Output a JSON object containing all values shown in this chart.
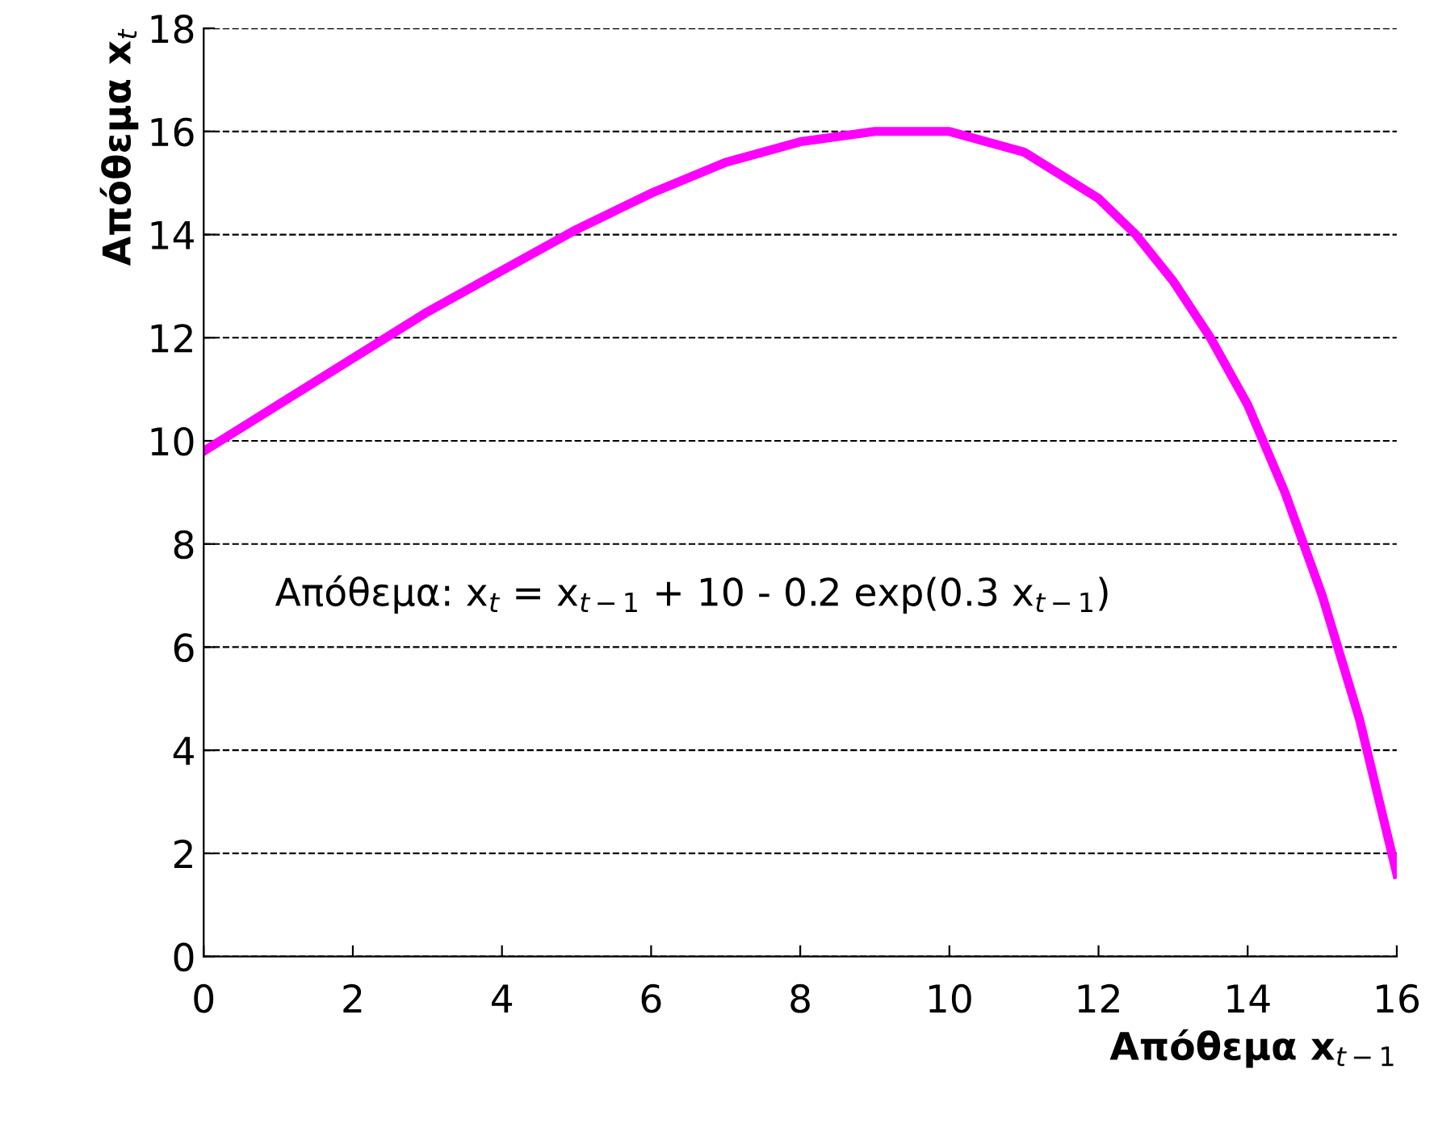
{
  "chart_data": {
    "type": "line",
    "xlabel": "Απόθεμα x$_{t−1}$",
    "ylabel": "Απόθεμα x$_{t}$",
    "x": [
      0,
      1,
      2,
      3,
      4,
      5,
      6,
      7,
      8,
      9,
      10,
      11,
      12,
      12.5,
      13,
      13.5,
      14,
      14.5,
      15,
      15.5,
      16
    ],
    "series": [
      {
        "color": "#ff00ff",
        "values": [
          9.8,
          10.7,
          11.6,
          12.5,
          13.3,
          14.1,
          14.8,
          15.4,
          15.8,
          16.0,
          16.0,
          15.6,
          14.7,
          14.0,
          13.1,
          12.0,
          10.7,
          9.0,
          7.0,
          4.6,
          1.6
        ]
      }
    ],
    "xlim": [
      0,
      16
    ],
    "xticks": [
      0,
      2,
      4,
      6,
      8,
      10,
      12,
      14,
      16
    ],
    "ylim": [
      0,
      18
    ],
    "yticks": [
      0,
      2,
      4,
      6,
      8,
      10,
      12,
      14,
      16,
      18
    ],
    "grid": "y",
    "legend": false,
    "marker": "none",
    "line_style": "solid",
    "annotations": [
      "Απόθεμα: x$_{t}$ = x$_{t−1}$ + 10 - 0.2 exp(0.3 x$_{t−1}$)"
    ]
  }
}
